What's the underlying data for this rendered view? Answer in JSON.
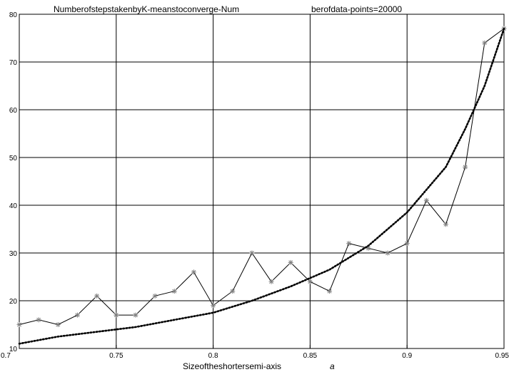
{
  "chart_data": {
    "type": "line",
    "title_left": "NumberofstepstakenbyK-meanstoconverge-Num",
    "title_right": "berofdata-points=20000",
    "xlabel": "Sizeoftheshortersemi-axis",
    "xlabel_symbol": "a",
    "xlim": [
      0.7,
      0.95
    ],
    "ylim": [
      10,
      80
    ],
    "x_ticks": [
      "0.7",
      "0.75",
      "0.8",
      "0.85",
      "0.9",
      "0.95"
    ],
    "y_ticks": [
      "10",
      "20",
      "30",
      "40",
      "50",
      "60",
      "70",
      "80"
    ],
    "grid": true,
    "series": [
      {
        "style": "solid-star",
        "color": "#000000",
        "marker_color": "#7f7f7f",
        "x": [
          0.7,
          0.71,
          0.72,
          0.73,
          0.74,
          0.75,
          0.76,
          0.77,
          0.78,
          0.79,
          0.8,
          0.81,
          0.82,
          0.83,
          0.84,
          0.85,
          0.86,
          0.87,
          0.88,
          0.89,
          0.9,
          0.91,
          0.92,
          0.93,
          0.94,
          0.95
        ],
        "y": [
          15,
          16,
          15,
          17,
          21,
          17,
          17,
          21,
          22,
          26,
          19,
          22,
          30,
          24,
          28,
          24,
          22,
          32,
          31,
          30,
          32,
          41,
          36,
          48,
          74,
          77
        ]
      },
      {
        "style": "dotted",
        "color": "#000000",
        "x": [
          0.7,
          0.72,
          0.74,
          0.76,
          0.78,
          0.8,
          0.82,
          0.84,
          0.86,
          0.88,
          0.9,
          0.92,
          0.93,
          0.94,
          0.95
        ],
        "y": [
          11,
          12.5,
          13.5,
          14.5,
          16,
          17.5,
          20,
          23,
          26.5,
          31.5,
          38.5,
          48,
          56,
          65,
          77
        ]
      }
    ]
  }
}
